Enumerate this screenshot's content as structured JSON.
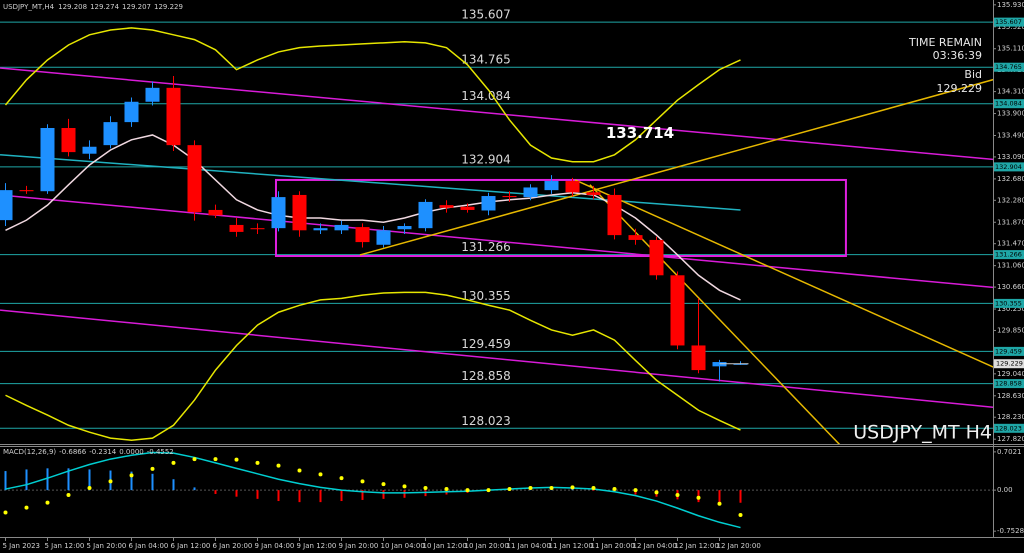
{
  "chart_data": [
    {
      "type": "candlestick",
      "title": "USDJPY_MT,H4",
      "watermark": "USDJPY_MT H4",
      "timer_label": "TIME REMAIN",
      "timer": "03:36:39",
      "bid_label": "Bid",
      "bid": 129.229,
      "categories": [
        "5 Jan 2023",
        null,
        "5 Jan 12:00",
        null,
        "5 Jan 20:00",
        null,
        "6 Jan 04:00",
        null,
        "6 Jan 12:00",
        null,
        "6 Jan 20:00",
        null,
        "9 Jan 04:00",
        null,
        "9 Jan 12:00",
        null,
        "9 Jan 20:00",
        null,
        "10 Jan 04:00",
        null,
        "10 Jan 12:00",
        null,
        "10 Jan 20:00",
        null,
        "11 Jan 04:00",
        null,
        "11 Jan 12:00",
        null,
        "11 Jan 20:00",
        null,
        "12 Jan 04:00",
        null,
        "12 Jan 12:00",
        null,
        "12 Jan 20:00",
        null
      ],
      "open": [
        131.91,
        132.47,
        132.45,
        133.63,
        133.15,
        133.31,
        133.74,
        134.12,
        134.38,
        133.31,
        132.1,
        131.82,
        131.76,
        131.76,
        132.38,
        131.72,
        131.72,
        131.78,
        131.45,
        131.74,
        131.76,
        132.19,
        132.16,
        132.09,
        132.36,
        132.34,
        132.47,
        132.64,
        132.43,
        132.38,
        131.63,
        131.54,
        130.88,
        129.57,
        129.18,
        129.208
      ],
      "high": [
        132.6,
        132.55,
        133.7,
        133.8,
        133.4,
        133.85,
        134.2,
        134.5,
        134.6,
        133.4,
        132.2,
        131.95,
        131.85,
        132.45,
        132.45,
        131.85,
        131.9,
        131.85,
        131.8,
        131.85,
        132.3,
        132.28,
        132.22,
        132.42,
        132.45,
        132.58,
        132.75,
        132.7,
        132.55,
        132.5,
        131.75,
        131.6,
        130.95,
        130.45,
        129.3,
        129.274
      ],
      "low": [
        131.8,
        132.4,
        132.4,
        133.1,
        133.05,
        133.25,
        133.65,
        134.05,
        133.2,
        131.9,
        131.95,
        131.6,
        131.65,
        131.7,
        131.6,
        131.65,
        131.65,
        131.4,
        131.4,
        131.65,
        131.7,
        132.05,
        132.05,
        132.0,
        132.25,
        132.28,
        132.4,
        132.35,
        132.3,
        131.55,
        131.45,
        130.8,
        129.5,
        129.05,
        128.9,
        129.207
      ],
      "close": [
        132.47,
        132.45,
        133.63,
        133.18,
        133.28,
        133.74,
        134.12,
        134.38,
        133.31,
        132.06,
        132.0,
        131.69,
        131.74,
        132.34,
        131.72,
        131.76,
        131.82,
        131.5,
        131.72,
        131.8,
        132.25,
        132.14,
        132.1,
        132.36,
        132.34,
        132.52,
        132.64,
        132.43,
        132.38,
        131.63,
        131.54,
        130.88,
        129.57,
        129.11,
        129.26,
        129.229
      ],
      "up_color": "#1e90ff",
      "down_color": "#ff0000",
      "ylim": [
        127.73,
        136.02
      ],
      "yticks": [
        {
          "value": 135.93,
          "label": "135.930"
        },
        {
          "value": 135.52,
          "label": "135.520"
        },
        {
          "value": 135.11,
          "label": "135.110"
        },
        {
          "value": 134.71,
          "label": "134.710"
        },
        {
          "value": 134.31,
          "label": "134.310"
        },
        {
          "value": 133.9,
          "label": "133.900"
        },
        {
          "value": 133.49,
          "label": "133.490"
        },
        {
          "value": 133.09,
          "label": "133.090"
        },
        {
          "value": 132.68,
          "label": "132.680"
        },
        {
          "value": 132.28,
          "label": "132.280"
        },
        {
          "value": 131.87,
          "label": "131.870"
        },
        {
          "value": 131.47,
          "label": "131.470"
        },
        {
          "value": 131.06,
          "label": "131.060"
        },
        {
          "value": 130.66,
          "label": "130.660"
        },
        {
          "value": 130.25,
          "label": "130.250"
        },
        {
          "value": 129.85,
          "label": "129.850"
        },
        {
          "value": 129.44,
          "label": "129.440"
        },
        {
          "value": 129.04,
          "label": "129.040"
        },
        {
          "value": 128.63,
          "label": "128.630"
        },
        {
          "value": 128.23,
          "label": "128.230"
        },
        {
          "value": 127.82,
          "label": "127.820"
        }
      ],
      "levels": [
        135.607,
        134.765,
        134.084,
        132.904,
        131.266,
        130.355,
        129.459,
        128.858,
        128.023
      ],
      "level_color": "#1fa7a7",
      "price_label": 133.714,
      "overlays": [
        {
          "color": "#e6e600",
          "values": [
            134.06,
            134.53,
            134.9,
            135.18,
            135.37,
            135.46,
            135.5,
            135.46,
            135.37,
            135.28,
            135.09,
            134.72,
            134.9,
            135.05,
            135.13,
            135.16,
            135.18,
            135.2,
            135.22,
            135.24,
            135.22,
            135.13,
            134.81,
            134.34,
            133.78,
            133.31,
            133.07,
            133.0,
            133.0,
            133.13,
            133.41,
            133.78,
            134.15,
            134.44,
            134.72,
            134.9
          ]
        },
        {
          "color": "#e6e600",
          "values": [
            128.64,
            128.45,
            128.27,
            128.08,
            127.95,
            127.84,
            127.8,
            127.84,
            128.08,
            128.55,
            129.11,
            129.57,
            129.95,
            130.19,
            130.32,
            130.42,
            130.45,
            130.51,
            130.55,
            130.56,
            130.56,
            130.51,
            130.42,
            130.32,
            130.23,
            130.04,
            129.86,
            129.76,
            129.86,
            129.67,
            129.29,
            128.92,
            128.64,
            128.36,
            128.17,
            127.99
          ]
        },
        {
          "color": "#f0d8e0",
          "values": [
            131.72,
            131.91,
            132.19,
            132.57,
            132.94,
            133.22,
            133.41,
            133.5,
            133.31,
            133.03,
            132.66,
            132.29,
            132.1,
            132.0,
            131.95,
            131.95,
            131.91,
            131.91,
            131.87,
            131.95,
            132.06,
            132.14,
            132.19,
            132.25,
            132.29,
            132.32,
            132.38,
            132.42,
            132.38,
            132.19,
            131.95,
            131.63,
            131.26,
            130.88,
            130.6,
            130.42
          ]
        }
      ],
      "trend_lines": [
        {
          "color": "#d81bd8",
          "x": [
            -0.26,
            48.5
          ],
          "y": [
            134.75,
            132.99
          ]
        },
        {
          "color": "#d81bd8",
          "x": [
            -0.26,
            48.5
          ],
          "y": [
            132.38,
            130.6
          ]
        },
        {
          "color": "#d81bd8",
          "x": [
            -0.26,
            48.5
          ],
          "y": [
            130.23,
            128.36
          ]
        },
        {
          "color": "#20b2c0",
          "x": [
            -0.26,
            35
          ],
          "y": [
            133.13,
            132.1
          ]
        },
        {
          "color": "#e6b800",
          "x": [
            16.88,
            47.83
          ],
          "y": [
            131.26,
            134.62
          ]
        },
        {
          "color": "#e6b800",
          "x": [
            27.12,
            47.36
          ],
          "y": [
            132.66,
            129.11
          ]
        },
        {
          "color": "#e6b800",
          "x": [
            27.83,
            40.21
          ],
          "y": [
            132.57,
            127.52
          ]
        }
      ],
      "box": {
        "color": "#e020e0",
        "x": [
          12.88,
          40.02
        ],
        "y": [
          131.24,
          132.66
        ]
      }
    },
    {
      "type": "macd",
      "title": "MACD(12,26,9)",
      "header_values": [
        -0.6866,
        -0.2314,
        {
          "value": 0,
          "label": "0.0000"
        },
        -0.4552
      ],
      "histogram": {
        "up_color": "#1e90ff",
        "down_color": "#ff0000",
        "values": [
          0.35,
          0.38,
          0.4,
          0.4,
          0.38,
          0.36,
          0.34,
          0.3,
          0.2,
          0.05,
          -0.07,
          -0.12,
          -0.16,
          -0.2,
          -0.22,
          -0.22,
          -0.2,
          -0.18,
          -0.16,
          -0.14,
          -0.11,
          -0.08,
          -0.05,
          -0.02,
          0.01,
          0.02,
          0.03,
          0.02,
          -0.01,
          -0.04,
          -0.08,
          -0.12,
          -0.17,
          -0.22,
          -0.25,
          -0.2314
        ]
      },
      "main": {
        "color": "#00ced1",
        "values": [
          0.02,
          0.1,
          0.22,
          0.35,
          0.47,
          0.57,
          0.64,
          0.69,
          0.68,
          0.6,
          0.5,
          0.4,
          0.3,
          0.2,
          0.12,
          0.05,
          0.0,
          -0.03,
          -0.05,
          -0.05,
          -0.04,
          -0.03,
          -0.02,
          0.0,
          0.02,
          0.04,
          0.05,
          0.04,
          0.02,
          -0.03,
          -0.1,
          -0.2,
          -0.33,
          -0.47,
          -0.59,
          -0.6866
        ]
      },
      "signal": {
        "color": "#ffff00",
        "values": [
          -0.41,
          -0.32,
          -0.23,
          -0.09,
          0.04,
          0.16,
          0.27,
          0.39,
          0.5,
          0.57,
          0.57,
          0.56,
          0.5,
          0.45,
          0.36,
          0.29,
          0.22,
          0.16,
          0.11,
          0.07,
          0.04,
          0.02,
          0.0,
          0.0,
          0.02,
          0.04,
          0.04,
          0.05,
          0.04,
          0.02,
          0.0,
          -0.04,
          -0.09,
          -0.14,
          -0.25,
          -0.4552
        ]
      },
      "ylim": [
        -0.86,
        0.81
      ],
      "yticks": [
        0.7021,
        {
          "value": 0,
          "label": "0.00"
        },
        -0.7528
      ]
    }
  ]
}
